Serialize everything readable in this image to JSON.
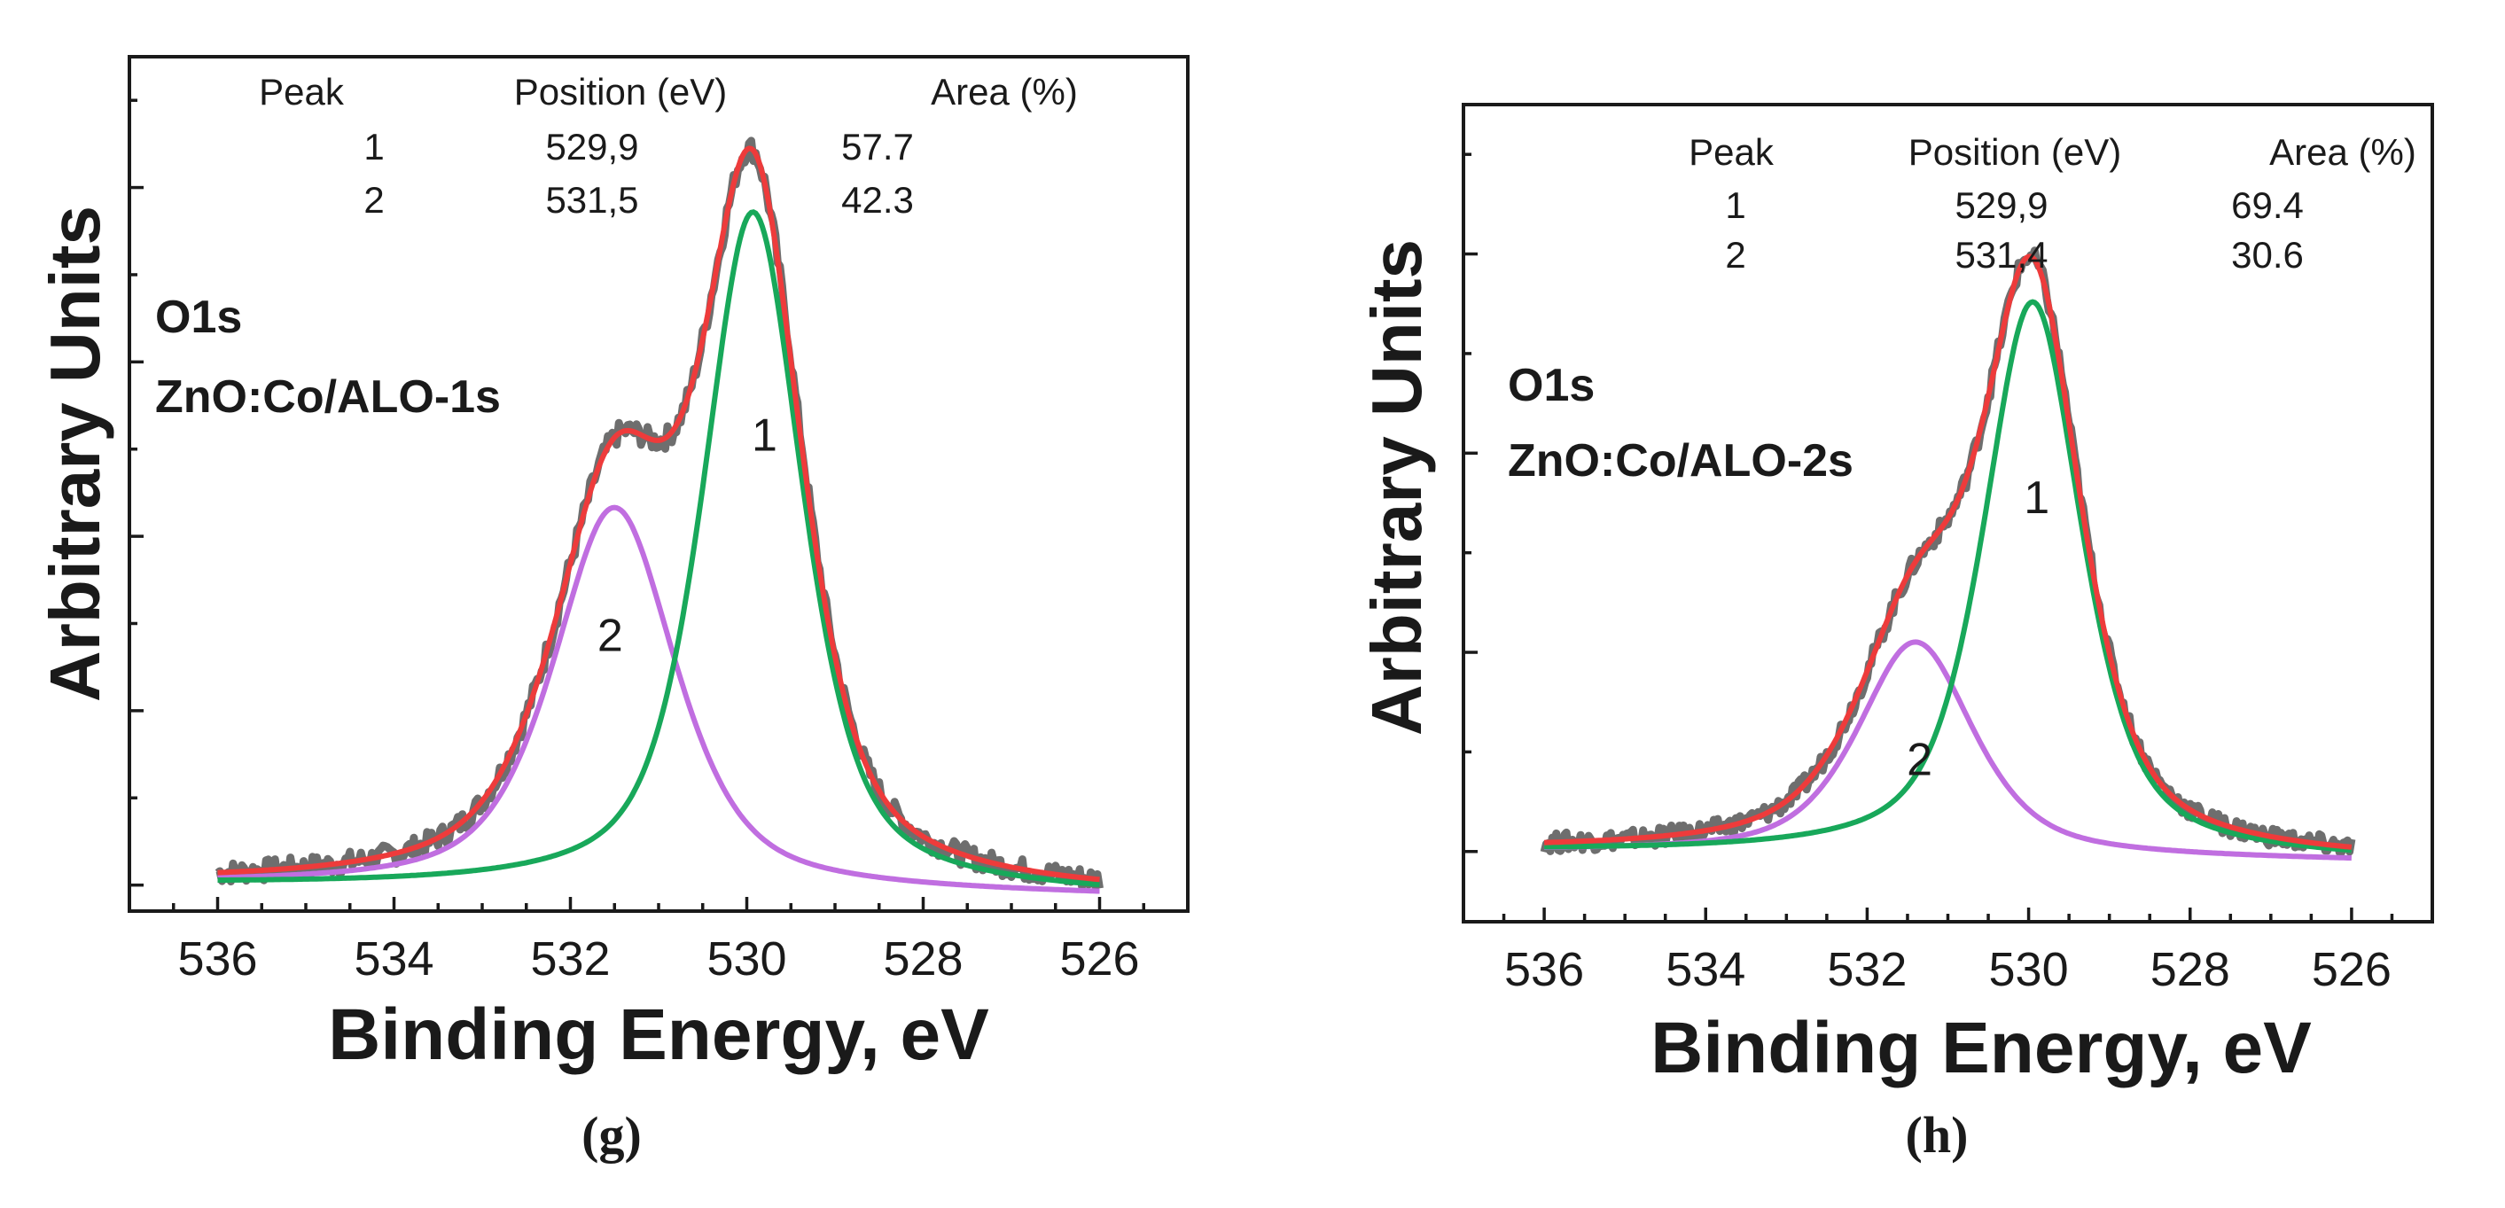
{
  "colors": {
    "raw": "#6e6e6e",
    "envelope": "#ee3b3b",
    "peak1": "#18a85a",
    "peak2": "#c06ee0"
  },
  "chart_data": [
    {
      "type": "line",
      "caption": "(g)",
      "xlabel": "Binding Energy, eV",
      "ylabel": "Arbitrary Units",
      "xlim": [
        537,
        525
      ],
      "x_reversed": true,
      "xticks": [
        536,
        534,
        532,
        530,
        528,
        526
      ],
      "ylim": [
        0,
        1.15
      ],
      "yticks_major_count": 5,
      "sample_line1": "O1s",
      "sample_line2": "ZnO:Co/ALO-1s",
      "table": {
        "headers": [
          "Peak",
          "Position (eV)",
          "Area (%)"
        ],
        "rows": [
          [
            "1",
            "529,9",
            "57.7"
          ],
          [
            "2",
            "531,5",
            "42.3"
          ]
        ]
      },
      "peak_labels": [
        {
          "text": "1",
          "x": 529.8,
          "y": 0.62
        },
        {
          "text": "2",
          "x": 531.55,
          "y": 0.35
        }
      ],
      "baseline": {
        "x_start": 536,
        "y_start": 0.035,
        "x_end": 526,
        "y_end": 0.02
      },
      "peaks": [
        {
          "name": "1",
          "center": 529.93,
          "fwhm": 1.35,
          "height": 0.915
        },
        {
          "name": "2",
          "center": 531.5,
          "fwhm": 1.65,
          "height": 0.515
        }
      ],
      "series": [
        {
          "name": "Experimental",
          "x": [
            536,
            535,
            534,
            533.5,
            533,
            532.5,
            532,
            531.5,
            531,
            530.5,
            530.2,
            530,
            529.8,
            529.5,
            529,
            528.5,
            528,
            527,
            526
          ],
          "y": [
            0.05,
            0.06,
            0.08,
            0.12,
            0.19,
            0.32,
            0.46,
            0.55,
            0.67,
            0.83,
            0.93,
            1.01,
            0.98,
            0.85,
            0.49,
            0.2,
            0.09,
            0.05,
            0.04
          ]
        },
        {
          "name": "Envelope fit",
          "x": [
            536,
            535,
            534,
            533.5,
            533,
            532.5,
            532,
            531.5,
            531,
            530.5,
            530.2,
            530,
            529.8,
            529.5,
            529,
            528.5,
            528,
            527,
            526
          ],
          "y": [
            0.05,
            0.06,
            0.08,
            0.12,
            0.19,
            0.32,
            0.46,
            0.55,
            0.67,
            0.83,
            0.93,
            1.01,
            0.98,
            0.85,
            0.49,
            0.2,
            0.09,
            0.05,
            0.04
          ]
        },
        {
          "name": "Peak 1",
          "x": [
            536,
            531,
            530.5,
            530,
            529.5,
            529,
            528.5,
            528,
            526
          ],
          "y": [
            0.035,
            0.1,
            0.46,
            0.94,
            0.72,
            0.3,
            0.11,
            0.06,
            0.02
          ]
        },
        {
          "name": "Peak 2",
          "x": [
            536,
            534,
            533,
            532.5,
            532,
            531.5,
            531,
            530.5,
            530,
            529,
            528,
            526
          ],
          "y": [
            0.04,
            0.07,
            0.15,
            0.28,
            0.46,
            0.55,
            0.45,
            0.27,
            0.14,
            0.05,
            0.03,
            0.02
          ]
        }
      ]
    },
    {
      "type": "line",
      "caption": "(h)",
      "xlabel": "Binding Energy, eV",
      "ylabel": "Arbitrary Units",
      "xlim": [
        537,
        525
      ],
      "x_reversed": true,
      "xticks": [
        536,
        534,
        532,
        530,
        528,
        526
      ],
      "ylim": [
        0,
        1.28
      ],
      "yticks_major_count": 4,
      "sample_line1": "O1s",
      "sample_line2": "ZnO:Co/ALO-2s",
      "table": {
        "headers": [
          "Peak",
          "Position (eV)",
          "Area (%)"
        ],
        "rows": [
          [
            "1",
            "529,9",
            "69.4"
          ],
          [
            "2",
            "531,4",
            "30.6"
          ]
        ]
      },
      "peak_labels": [
        {
          "text": "1",
          "x": 529.9,
          "y": 0.64
        },
        {
          "text": "2",
          "x": 531.35,
          "y": 0.23
        }
      ],
      "baseline": {
        "x_start": 536,
        "y_start": 0.11,
        "x_end": 526,
        "y_end": 0.095
      },
      "peaks": [
        {
          "name": "1",
          "center": 529.95,
          "fwhm": 1.45,
          "height": 0.87
        },
        {
          "name": "2",
          "center": 531.4,
          "fwhm": 1.7,
          "height": 0.335
        }
      ],
      "series": [
        {
          "name": "Experimental",
          "x": [
            536,
            534,
            533,
            532.5,
            532,
            531.5,
            531,
            530.5,
            530,
            529.5,
            529,
            528.5,
            528,
            527,
            526
          ],
          "y": [
            0.12,
            0.13,
            0.2,
            0.29,
            0.38,
            0.47,
            0.62,
            0.85,
            0.98,
            0.86,
            0.53,
            0.24,
            0.15,
            0.11,
            0.1
          ]
        },
        {
          "name": "Envelope fit",
          "x": [
            536,
            534,
            533,
            532.5,
            532,
            531.5,
            531,
            530.5,
            530,
            529.5,
            529,
            528.5,
            528,
            527,
            526
          ],
          "y": [
            0.12,
            0.13,
            0.2,
            0.29,
            0.38,
            0.47,
            0.62,
            0.85,
            0.98,
            0.86,
            0.53,
            0.24,
            0.15,
            0.11,
            0.1
          ]
        },
        {
          "name": "Peak 1",
          "x": [
            536,
            531,
            530.5,
            530,
            529.5,
            529,
            528.5,
            528,
            526
          ],
          "y": [
            0.11,
            0.18,
            0.5,
            0.96,
            0.8,
            0.38,
            0.16,
            0.12,
            0.1
          ]
        },
        {
          "name": "Peak 2",
          "x": [
            536,
            534,
            533,
            532,
            531.5,
            531,
            530.5,
            530,
            529,
            528,
            526
          ],
          "y": [
            0.11,
            0.13,
            0.19,
            0.36,
            0.44,
            0.4,
            0.26,
            0.17,
            0.11,
            0.1,
            0.09
          ]
        }
      ]
    }
  ]
}
